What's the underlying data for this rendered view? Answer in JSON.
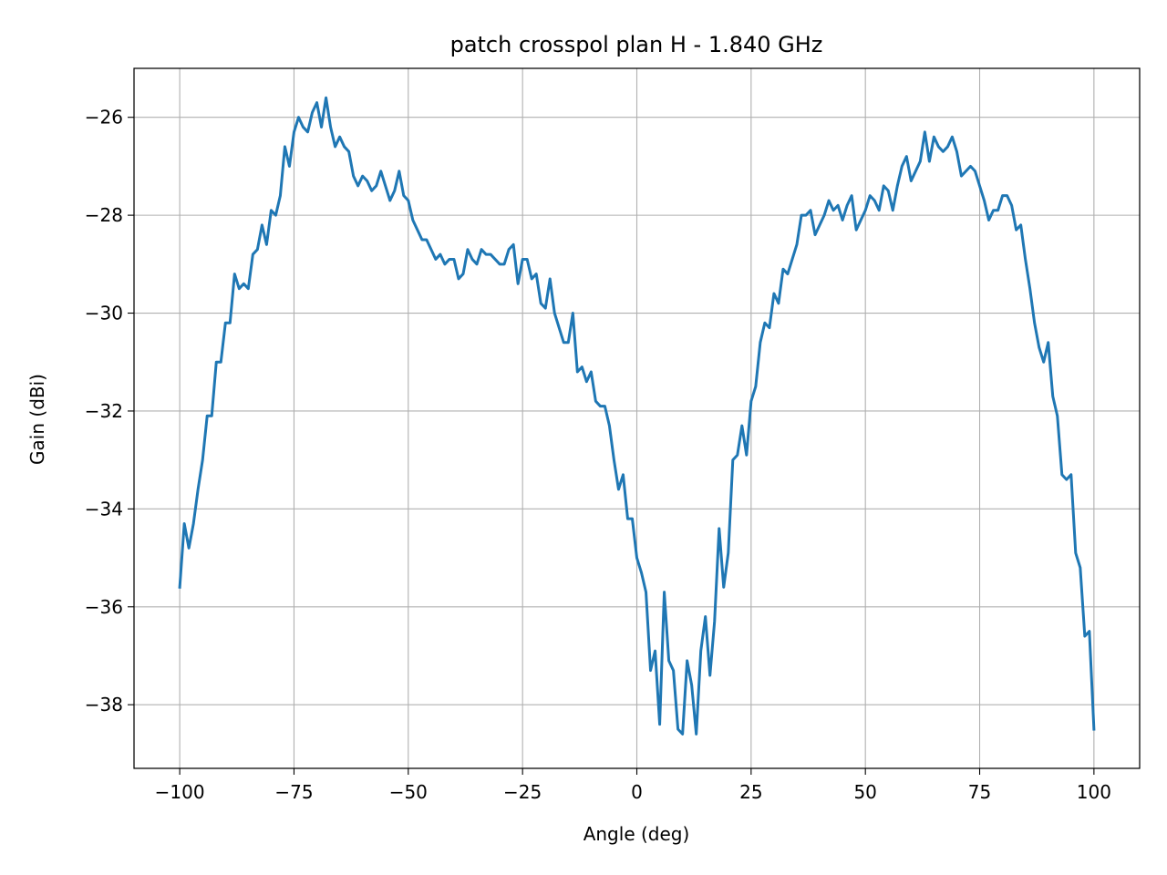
{
  "chart_data": {
    "type": "line",
    "title": "patch crosspol plan H - 1.840 GHz",
    "xlabel": "Angle (deg)",
    "ylabel": "Gain (dBi)",
    "xlim": [
      -110,
      110
    ],
    "ylim": [
      -39.3,
      -25.0
    ],
    "xticks": [
      -100,
      -75,
      -50,
      -25,
      0,
      25,
      50,
      75,
      100
    ],
    "yticks": [
      -38,
      -36,
      -34,
      -32,
      -30,
      -28,
      -26
    ],
    "grid": true,
    "line_color": "#1f77b4",
    "series": [
      {
        "x": [
          -100,
          -99,
          -98,
          -97,
          -96,
          -95,
          -94,
          -93,
          -92,
          -91,
          -90,
          -89,
          -88,
          -87,
          -86,
          -85,
          -84,
          -83,
          -82,
          -81,
          -80,
          -79,
          -78,
          -77,
          -76,
          -75,
          -74,
          -73,
          -72,
          -71,
          -70,
          -69,
          -68,
          -67,
          -66,
          -65,
          -64,
          -63,
          -62,
          -61,
          -60,
          -59,
          -58,
          -57,
          -56,
          -55,
          -54,
          -53,
          -52,
          -51,
          -50,
          -49,
          -48,
          -47,
          -46,
          -45,
          -44,
          -43,
          -42,
          -41,
          -40,
          -39,
          -38,
          -37,
          -36,
          -35,
          -34,
          -33,
          -32,
          -31,
          -30,
          -29,
          -28,
          -27,
          -26,
          -25,
          -24,
          -23,
          -22,
          -21,
          -20,
          -19,
          -18,
          -17,
          -16,
          -15,
          -14,
          -13,
          -12,
          -11,
          -10,
          -9,
          -8,
          -7,
          -6,
          -5,
          -4,
          -3,
          -2,
          -1,
          0,
          1,
          2,
          3,
          4,
          5,
          6,
          7,
          8,
          9,
          10,
          11,
          12,
          13,
          14,
          15,
          16,
          17,
          18,
          19,
          20,
          21,
          22,
          23,
          24,
          25,
          26,
          27,
          28,
          29,
          30,
          31,
          32,
          33,
          34,
          35,
          36,
          37,
          38,
          39,
          40,
          41,
          42,
          43,
          44,
          45,
          46,
          47,
          48,
          49,
          50,
          51,
          52,
          53,
          54,
          55,
          56,
          57,
          58,
          59,
          60,
          61,
          62,
          63,
          64,
          65,
          66,
          67,
          68,
          69,
          70,
          71,
          72,
          73,
          74,
          75,
          76,
          77,
          78,
          79,
          80,
          81,
          82,
          83,
          84,
          85,
          86,
          87,
          88,
          89,
          90,
          91,
          92,
          93,
          94,
          95,
          96,
          97,
          98,
          99,
          100
        ],
        "y": [
          -35.6,
          -34.3,
          -34.8,
          -34.3,
          -33.6,
          -33.0,
          -32.1,
          -32.1,
          -31.0,
          -31.0,
          -30.2,
          -30.2,
          -29.2,
          -29.5,
          -29.4,
          -29.5,
          -28.8,
          -28.7,
          -28.2,
          -28.6,
          -27.9,
          -28.0,
          -27.6,
          -26.6,
          -27.0,
          -26.3,
          -26.0,
          -26.2,
          -26.3,
          -25.9,
          -25.7,
          -26.2,
          -25.6,
          -26.2,
          -26.6,
          -26.4,
          -26.6,
          -26.7,
          -27.2,
          -27.4,
          -27.2,
          -27.3,
          -27.5,
          -27.4,
          -27.1,
          -27.4,
          -27.7,
          -27.5,
          -27.1,
          -27.6,
          -27.7,
          -28.1,
          -28.3,
          -28.5,
          -28.5,
          -28.7,
          -28.9,
          -28.8,
          -29.0,
          -28.9,
          -28.9,
          -29.3,
          -29.2,
          -28.7,
          -28.9,
          -29.0,
          -28.7,
          -28.8,
          -28.8,
          -28.9,
          -29.0,
          -29.0,
          -28.7,
          -28.6,
          -29.4,
          -28.9,
          -28.9,
          -29.3,
          -29.2,
          -29.8,
          -29.9,
          -29.3,
          -30.0,
          -30.3,
          -30.6,
          -30.6,
          -30.0,
          -31.2,
          -31.1,
          -31.4,
          -31.2,
          -31.8,
          -31.9,
          -31.9,
          -32.3,
          -33.0,
          -33.6,
          -33.3,
          -34.2,
          -34.2,
          -35.0,
          -35.3,
          -35.7,
          -37.3,
          -36.9,
          -38.4,
          -35.7,
          -37.1,
          -37.3,
          -38.5,
          -38.6,
          -37.1,
          -37.6,
          -38.6,
          -36.9,
          -36.2,
          -37.4,
          -36.3,
          -34.4,
          -35.6,
          -34.9,
          -33.0,
          -32.9,
          -32.3,
          -32.9,
          -31.8,
          -31.5,
          -30.6,
          -30.2,
          -30.3,
          -29.6,
          -29.8,
          -29.1,
          -29.2,
          -28.9,
          -28.6,
          -28.0,
          -28.0,
          -27.9,
          -28.4,
          -28.2,
          -28.0,
          -27.7,
          -27.9,
          -27.8,
          -28.1,
          -27.8,
          -27.6,
          -28.3,
          -28.1,
          -27.9,
          -27.6,
          -27.7,
          -27.9,
          -27.4,
          -27.5,
          -27.9,
          -27.4,
          -27.0,
          -26.8,
          -27.3,
          -27.1,
          -26.9,
          -26.3,
          -26.9,
          -26.4,
          -26.6,
          -26.7,
          -26.6,
          -26.4,
          -26.7,
          -27.2,
          -27.1,
          -27.0,
          -27.1,
          -27.4,
          -27.7,
          -28.1,
          -27.9,
          -27.9,
          -27.6,
          -27.6,
          -27.8,
          -28.3,
          -28.2,
          -28.9,
          -29.5,
          -30.2,
          -30.7,
          -31.0,
          -30.6,
          -31.7,
          -32.1,
          -33.3,
          -33.4,
          -33.3,
          -34.9,
          -35.2,
          -36.6,
          -36.5,
          -38.5
        ]
      }
    ]
  }
}
